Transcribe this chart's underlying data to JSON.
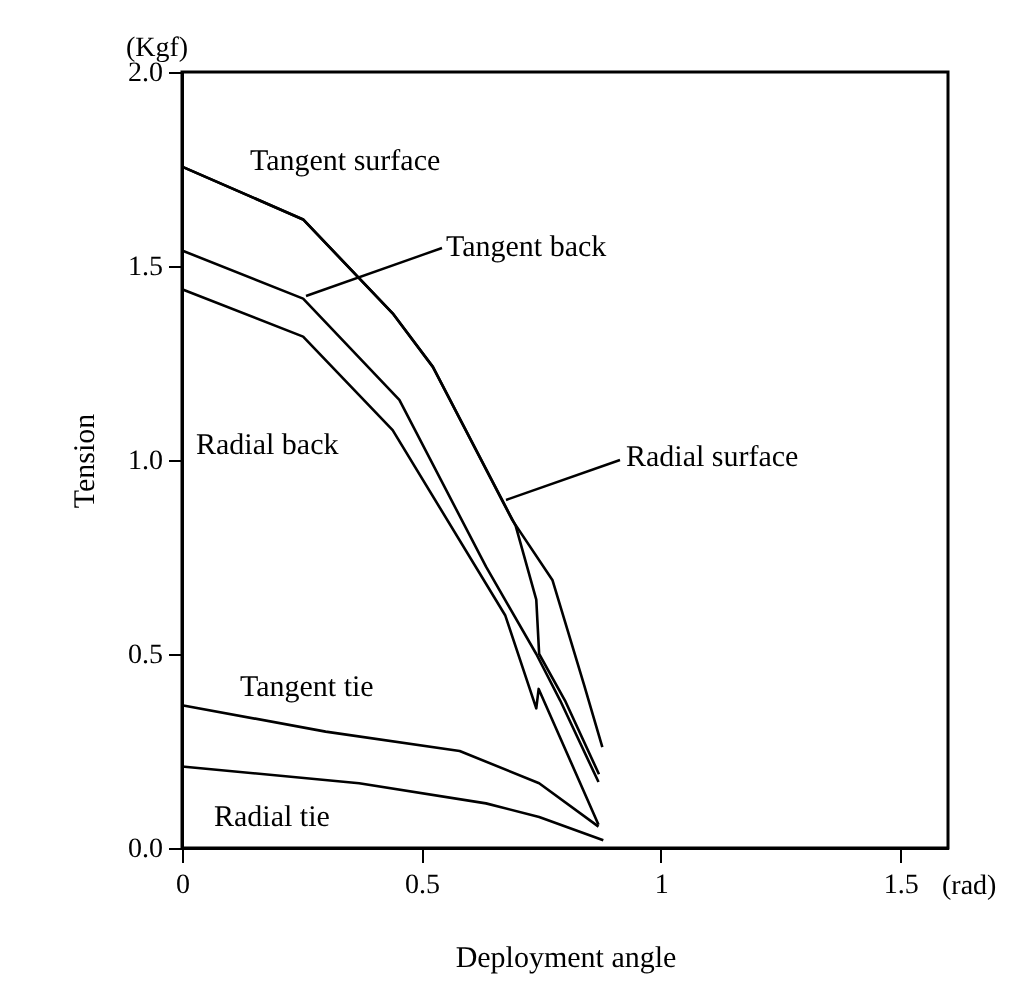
{
  "chart_data": {
    "type": "line",
    "xlabel": "Deployment angle",
    "ylabel": "Tension",
    "annotations": [
      "(Kgf)",
      "(rad)"
    ],
    "xlim": [
      0,
      1.6
    ],
    "xticks": [
      0,
      0.5,
      1,
      1.5
    ],
    "ylim": [
      0,
      2.0
    ],
    "yticks": [
      {
        "value": 0,
        "label": "0.0"
      },
      {
        "value": 0.5,
        "label": "0.5"
      },
      {
        "value": 1,
        "label": "1.0"
      },
      {
        "value": 1.5,
        "label": "1.5"
      },
      {
        "value": 2,
        "label": "2.0"
      }
    ],
    "grid": false,
    "legend": false,
    "marker": "none",
    "line_style": "solid",
    "series": [
      {
        "name": "Tangent surface",
        "color": "#000000",
        "x": [
          0,
          0.253,
          0.44,
          0.524,
          0.69,
          0.774,
          0.84,
          0.878
        ],
        "values": [
          1.756,
          1.62,
          1.378,
          1.24,
          0.845,
          0.69,
          0.42,
          0.26
        ]
      },
      {
        "name": "Tangent back",
        "color": "#000000",
        "x": [
          0,
          0.253,
          0.454,
          0.635,
          0.74,
          0.79,
          0.87
        ],
        "values": [
          1.54,
          1.416,
          1.155,
          0.725,
          0.5,
          0.38,
          0.17
        ]
      },
      {
        "name": "Radial surface",
        "color": "#000000",
        "x": [
          0,
          0.253,
          0.44,
          0.524,
          0.697,
          0.74,
          0.746,
          0.8,
          0.871
        ],
        "values": [
          1.756,
          1.62,
          1.378,
          1.24,
          0.83,
          0.64,
          0.5,
          0.38,
          0.19
        ]
      },
      {
        "name": "Radial back",
        "color": "#000000",
        "x": [
          0,
          0.253,
          0.44,
          0.675,
          0.74,
          0.745,
          0.87
        ],
        "values": [
          1.44,
          1.318,
          1.077,
          0.6,
          0.36,
          0.41,
          0.06
        ]
      },
      {
        "name": "Tangent tie",
        "color": "#000000",
        "x": [
          0,
          0.3,
          0.58,
          0.746,
          0.87
        ],
        "values": [
          0.368,
          0.3,
          0.25,
          0.167,
          0.055
        ]
      },
      {
        "name": "Radial tie",
        "color": "#000000",
        "x": [
          0,
          0.37,
          0.635,
          0.746,
          0.88
        ],
        "values": [
          0.21,
          0.167,
          0.115,
          0.08,
          0.02
        ]
      }
    ]
  }
}
